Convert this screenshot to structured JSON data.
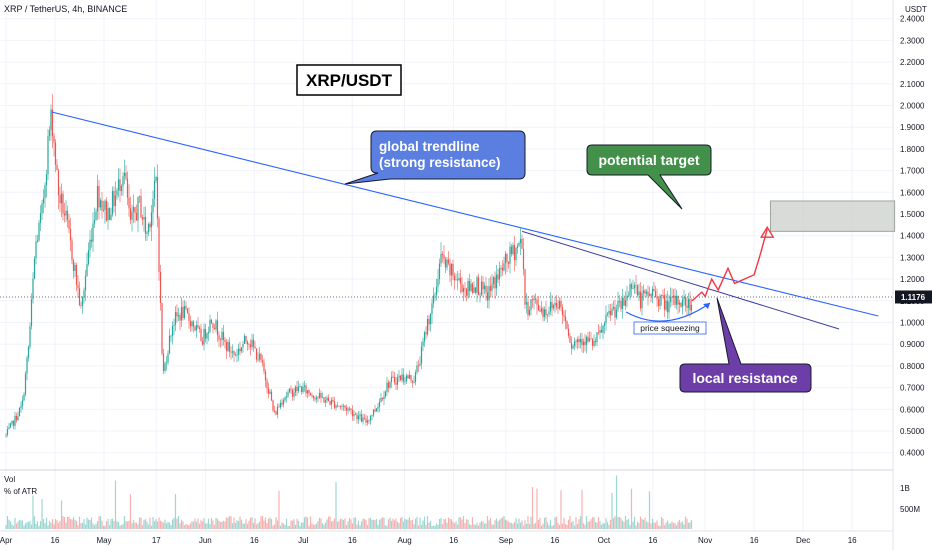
{
  "header": {
    "symbol": "XRP / TetherUS, 4h, BINANCE",
    "currency": "USDT"
  },
  "title": "XRP/USDT",
  "annotations": {
    "global_trendline": [
      "global trendline",
      "(strong resistance)"
    ],
    "potential_target": "potential target",
    "local_resistance": "local resistance",
    "price_squeezing": "price squeezing"
  },
  "price_axis": {
    "labels": [
      "2.4000",
      "2.3000",
      "2.2000",
      "2.1000",
      "2.0000",
      "1.9000",
      "1.8000",
      "1.7000",
      "1.6000",
      "1.5000",
      "1.4000",
      "1.3000",
      "1.2000",
      "1.1000",
      "1.0000",
      "0.9000",
      "0.8000",
      "0.7000",
      "0.6000",
      "0.5000",
      "0.4000"
    ],
    "current_price": "1.1176"
  },
  "volume_panel": {
    "label_vol": "Vol",
    "label_atr": "% of ATR",
    "labels": [
      "1B",
      "500M"
    ]
  },
  "time_axis": {
    "labels": [
      "Apr",
      "16",
      "May",
      "17",
      "Jun",
      "16",
      "Jul",
      "16",
      "Aug",
      "16",
      "Sep",
      "16",
      "Oct",
      "16",
      "Nov",
      "16",
      "Dec",
      "16"
    ]
  },
  "colors": {
    "up": "#26a69a",
    "down": "#ef5350",
    "trendline": "#2962ff",
    "local_trendline": "#3f3fa0",
    "global_callout": "#5b7fe0",
    "target_callout": "#43904a",
    "local_callout": "#6d3ea8",
    "target_zone": "#c8ccc8",
    "projection": "#f23645"
  },
  "chart_data": {
    "type": "candlestick",
    "title": "XRP/USDT",
    "symbol": "XRP / TetherUS",
    "timeframe": "4h",
    "exchange": "BINANCE",
    "current_price": 1.1176,
    "ylim": [
      0.35,
      2.45
    ],
    "x_ticks": [
      "Apr",
      "16",
      "May",
      "17",
      "Jun",
      "16",
      "Jul",
      "16",
      "Aug",
      "16",
      "Sep",
      "16",
      "Oct",
      "16",
      "Nov",
      "16",
      "Dec",
      "16"
    ],
    "price_path": [
      [
        "2021-04-01",
        0.48
      ],
      [
        "2021-04-04",
        0.56
      ],
      [
        "2021-04-06",
        0.62
      ],
      [
        "2021-04-08",
        0.9
      ],
      [
        "2021-04-10",
        1.35
      ],
      [
        "2021-04-12",
        1.5
      ],
      [
        "2021-04-14",
        1.85
      ],
      [
        "2021-04-15",
        1.96
      ],
      [
        "2021-04-17",
        1.6
      ],
      [
        "2021-04-19",
        1.5
      ],
      [
        "2021-04-22",
        1.25
      ],
      [
        "2021-04-24",
        1.05
      ],
      [
        "2021-04-26",
        1.3
      ],
      [
        "2021-04-29",
        1.6
      ],
      [
        "2021-05-02",
        1.5
      ],
      [
        "2021-05-05",
        1.6
      ],
      [
        "2021-05-07",
        1.72
      ],
      [
        "2021-05-09",
        1.45
      ],
      [
        "2021-05-12",
        1.55
      ],
      [
        "2021-05-14",
        1.4
      ],
      [
        "2021-05-17",
        1.65
      ],
      [
        "2021-05-19",
        0.75
      ],
      [
        "2021-05-22",
        1.0
      ],
      [
        "2021-05-25",
        1.05
      ],
      [
        "2021-05-28",
        1.0
      ],
      [
        "2021-05-31",
        0.92
      ],
      [
        "2021-06-03",
        1.02
      ],
      [
        "2021-06-07",
        0.9
      ],
      [
        "2021-06-10",
        0.85
      ],
      [
        "2021-06-14",
        0.93
      ],
      [
        "2021-06-18",
        0.82
      ],
      [
        "2021-06-21",
        0.66
      ],
      [
        "2021-06-22",
        0.57
      ],
      [
        "2021-06-25",
        0.66
      ],
      [
        "2021-06-30",
        0.7
      ],
      [
        "2021-07-05",
        0.66
      ],
      [
        "2021-07-10",
        0.63
      ],
      [
        "2021-07-15",
        0.6
      ],
      [
        "2021-07-20",
        0.54
      ],
      [
        "2021-07-23",
        0.6
      ],
      [
        "2021-07-27",
        0.72
      ],
      [
        "2021-07-31",
        0.75
      ],
      [
        "2021-08-04",
        0.74
      ],
      [
        "2021-08-06",
        0.85
      ],
      [
        "2021-08-08",
        1.0
      ],
      [
        "2021-08-10",
        1.1
      ],
      [
        "2021-08-12",
        1.3
      ],
      [
        "2021-08-14",
        1.25
      ],
      [
        "2021-08-17",
        1.2
      ],
      [
        "2021-08-20",
        1.15
      ],
      [
        "2021-08-23",
        1.18
      ],
      [
        "2021-08-26",
        1.12
      ],
      [
        "2021-08-29",
        1.2
      ],
      [
        "2021-09-02",
        1.3
      ],
      [
        "2021-09-06",
        1.38
      ],
      [
        "2021-09-07",
        1.05
      ],
      [
        "2021-09-09",
        1.1
      ],
      [
        "2021-09-13",
        1.05
      ],
      [
        "2021-09-17",
        1.1
      ],
      [
        "2021-09-20",
        0.98
      ],
      [
        "2021-09-21",
        0.9
      ],
      [
        "2021-09-24",
        0.93
      ],
      [
        "2021-09-28",
        0.9
      ],
      [
        "2021-10-01",
        0.98
      ],
      [
        "2021-10-03",
        1.05
      ],
      [
        "2021-10-07",
        1.08
      ],
      [
        "2021-10-10",
        1.2
      ],
      [
        "2021-10-12",
        1.1
      ],
      [
        "2021-10-16",
        1.14
      ],
      [
        "2021-10-20",
        1.08
      ],
      [
        "2021-10-24",
        1.1
      ],
      [
        "2021-10-28",
        1.08
      ]
    ],
    "global_trendline": {
      "start": [
        "2021-04-15",
        1.97
      ],
      "end": [
        "2021-12-24",
        1.03
      ]
    },
    "local_trendline": {
      "start": [
        "2021-09-06",
        1.42
      ],
      "end": [
        "2021-12-12",
        0.97
      ]
    },
    "target_zone": {
      "x_start": "2021-11-21",
      "x_end": "2021-12-29",
      "y_low": 1.42,
      "y_high": 1.56
    },
    "projection_path": [
      [
        "2021-10-28",
        1.1
      ],
      [
        "2021-10-31",
        1.14
      ],
      [
        "2021-11-01",
        1.12
      ],
      [
        "2021-11-03",
        1.2
      ],
      [
        "2021-11-05",
        1.15
      ],
      [
        "2021-11-08",
        1.25
      ],
      [
        "2021-11-10",
        1.18
      ],
      [
        "2021-11-13",
        1.2
      ],
      [
        "2021-11-16",
        1.22
      ],
      [
        "2021-11-18",
        1.32
      ],
      [
        "2021-11-20",
        1.43
      ]
    ]
  }
}
